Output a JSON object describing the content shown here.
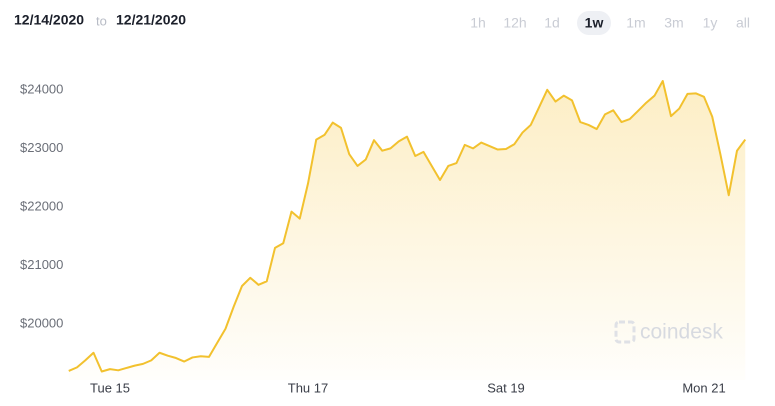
{
  "header": {
    "start": "12/14/2020",
    "separator": "to",
    "end": "12/21/2020"
  },
  "ranges": [
    "1h",
    "12h",
    "1d",
    "1w",
    "1m",
    "3m",
    "1y",
    "all"
  ],
  "selected_range_index": 3,
  "watermark": "coindesk",
  "chart_data": {
    "type": "line",
    "categories": [
      null,
      null,
      null,
      null,
      null,
      "Tue 15",
      null,
      null,
      null,
      null,
      null,
      null,
      null,
      null,
      null,
      null,
      null,
      null,
      null,
      null,
      null,
      null,
      null,
      null,
      null,
      null,
      null,
      null,
      null,
      "Thu 17",
      null,
      null,
      null,
      null,
      null,
      null,
      null,
      null,
      null,
      null,
      null,
      null,
      null,
      null,
      null,
      null,
      null,
      null,
      null,
      null,
      null,
      null,
      null,
      "Sat 19",
      null,
      null,
      null,
      null,
      null,
      null,
      null,
      null,
      null,
      null,
      null,
      null,
      null,
      null,
      null,
      null,
      null,
      null,
      null,
      null,
      null,
      null,
      null,
      "Mon 21",
      null,
      null,
      null,
      null,
      null
    ],
    "values": [
      19200,
      19260,
      19380,
      19510,
      19190,
      19230,
      19210,
      19250,
      19290,
      19320,
      19380,
      19510,
      19460,
      19420,
      19360,
      19430,
      19450,
      19440,
      19680,
      19920,
      20300,
      20650,
      20790,
      20670,
      20730,
      21300,
      21380,
      21920,
      21800,
      22400,
      23150,
      23230,
      23440,
      23350,
      22900,
      22700,
      22810,
      23140,
      22960,
      23000,
      23120,
      23200,
      22870,
      22940,
      22700,
      22460,
      22700,
      22750,
      23060,
      23000,
      23100,
      23040,
      22980,
      22990,
      23070,
      23270,
      23400,
      23700,
      24000,
      23800,
      23900,
      23820,
      23450,
      23400,
      23330,
      23580,
      23650,
      23450,
      23500,
      23640,
      23780,
      23900,
      24150,
      23550,
      23680,
      23930,
      23940,
      23880,
      23540,
      22890,
      22200,
      22960,
      23150
    ],
    "color": "#f2c12e",
    "ylim": [
      19130,
      24680
    ],
    "yticks": [
      {
        "value": 20000,
        "label": "$20000"
      },
      {
        "value": 21000,
        "label": "$21000"
      },
      {
        "value": 22000,
        "label": "$22000"
      },
      {
        "value": 23000,
        "label": "$23000"
      },
      {
        "value": 24000,
        "label": "$24000"
      }
    ],
    "grid": false
  }
}
